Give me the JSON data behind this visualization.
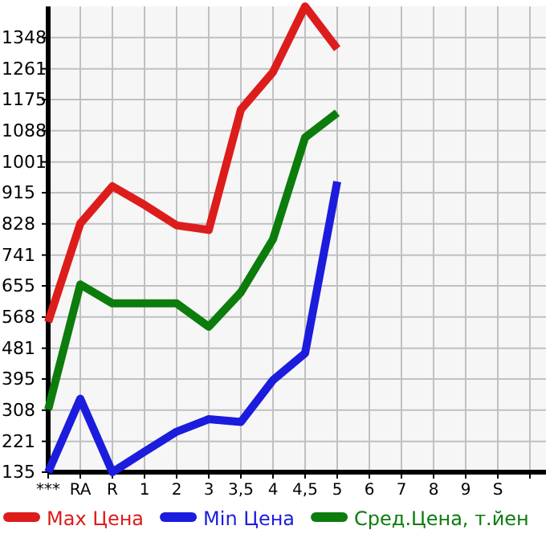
{
  "chart_data": {
    "type": "line",
    "categories": [
      "***",
      "RA",
      "R",
      "1",
      "2",
      "3",
      "3,5",
      "4",
      "4,5",
      "5",
      "6",
      "7",
      "8",
      "9",
      "S",
      null
    ],
    "series": [
      {
        "name": "Max Цена",
        "color": "#dd1c1c",
        "values": [
          554,
          829,
          933,
          881,
          824,
          811,
          1147,
          1252,
          1435,
          1317,
          null,
          null,
          null,
          null,
          null,
          null
        ]
      },
      {
        "name": "Min Цена",
        "color": "#1c1cdd",
        "values": [
          135,
          340,
          135,
          192,
          248,
          283,
          275,
          392,
          467,
          946,
          null,
          null,
          null,
          null,
          null,
          null
        ]
      },
      {
        "name": "Сред.Цена, т.йен",
        "color": "#0c7c0c",
        "values": [
          310,
          659,
          606,
          606,
          606,
          541,
          637,
          785,
          1069,
          1138,
          null,
          null,
          null,
          null,
          null,
          null
        ]
      }
    ],
    "ylim": [
      135,
      1435
    ],
    "yticks": [
      135,
      221,
      308,
      395,
      481,
      568,
      655,
      741,
      828,
      915,
      1001,
      1088,
      1175,
      1261,
      1348
    ],
    "grid": true,
    "legend": "bottom",
    "marker": "none",
    "line_style": "solid"
  }
}
